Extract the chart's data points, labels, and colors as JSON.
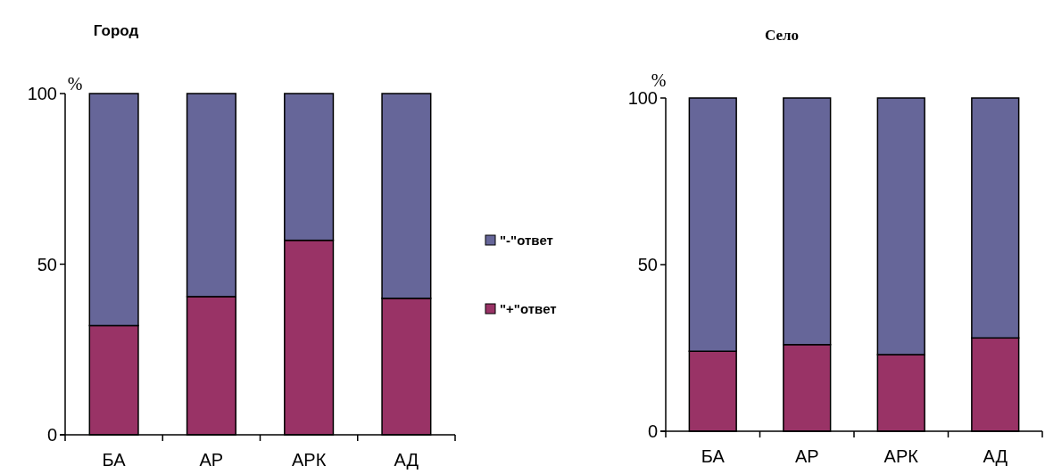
{
  "chart_data": [
    {
      "type": "bar",
      "title": "Город",
      "ylabel": "%",
      "categories": [
        "БА",
        "АР",
        "АРК",
        "АД"
      ],
      "stacked": true,
      "ylim": [
        0,
        100
      ],
      "yticks": [
        0,
        50,
        100
      ],
      "legend": "right",
      "series": [
        {
          "name": "\"+\"ответ",
          "color": "#993366",
          "values": [
            32,
            40.5,
            57,
            40
          ]
        },
        {
          "name": "\"-\"ответ",
          "color": "#666699",
          "values": [
            68,
            59.5,
            43,
            60
          ]
        }
      ]
    },
    {
      "type": "bar",
      "title": "Село",
      "ylabel": "%",
      "categories": [
        "БА",
        "АР",
        "АРК",
        "АД"
      ],
      "stacked": true,
      "ylim": [
        0,
        100
      ],
      "yticks": [
        0,
        50,
        100
      ],
      "series": [
        {
          "color": "#993366",
          "values": [
            24,
            26,
            23,
            28
          ]
        },
        {
          "color": "#666699",
          "values": [
            76,
            74,
            77,
            72
          ]
        }
      ]
    }
  ]
}
